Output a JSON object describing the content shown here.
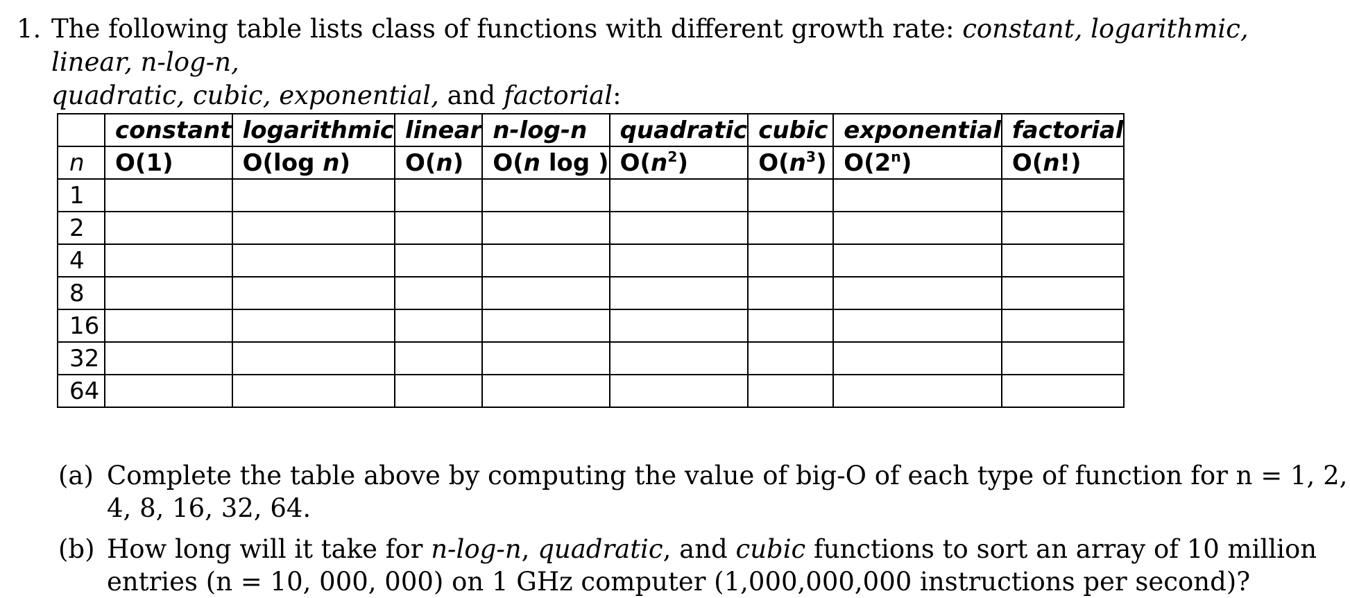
{
  "problem": {
    "number": "1.",
    "intro_prefix": "The following table lists class of functions with different growth rate: ",
    "classes_line1": "constant, logarithmic, linear, n-log-n,",
    "classes_line2_start": "quadratic, cubic, exponential,",
    "conjunction": " and ",
    "last_class": "factorial",
    "end": ":"
  },
  "table": {
    "header_names": [
      "",
      "constant",
      "logarithmic",
      "linear",
      "n-log-n",
      "quadratic",
      "cubic",
      "exponential",
      "factorial"
    ],
    "n_label": "n",
    "orders": [
      {
        "pre": "O(",
        "var": "",
        "mid": "1",
        "sup": "",
        "post": ")"
      },
      {
        "pre": "O(log ",
        "var": "n",
        "mid": "",
        "sup": "",
        "post": ")"
      },
      {
        "pre": "O(",
        "var": "n",
        "mid": "",
        "sup": "",
        "post": ")"
      },
      {
        "pre": "O(",
        "var": "n",
        "mid": " log ",
        "sup": "",
        "post": ")"
      },
      {
        "pre": "O(",
        "var": "n",
        "mid": "",
        "sup": "2",
        "post": ")"
      },
      {
        "pre": "O(",
        "var": "n",
        "mid": "",
        "sup": "3",
        "post": ")"
      },
      {
        "pre": "O(2",
        "var": "",
        "mid": "",
        "sup": "n",
        "post": ")"
      },
      {
        "pre": "O(",
        "var": "n",
        "mid": "!",
        "sup": "",
        "post": ")"
      }
    ],
    "rows": [
      "1",
      "2",
      "4",
      "8",
      "16",
      "32",
      "64"
    ]
  },
  "parts": {
    "a": {
      "label": "(a)",
      "text": "Complete the table above by computing the value of big-O of each type of function for n = 1, 2, 4, 8, 16, 32, 64."
    },
    "b": {
      "label": "(b)",
      "text_start": "How long will it take for ",
      "f1": "n-log-n",
      "sep1": ", ",
      "f2": "quadratic",
      "sep2": ", and ",
      "f3": "cubic",
      "text_end": " functions to sort an array of 10 million entries (n = 10, 000, 000) on 1 GHz computer (1,000,000,000 instructions per second)?"
    }
  }
}
